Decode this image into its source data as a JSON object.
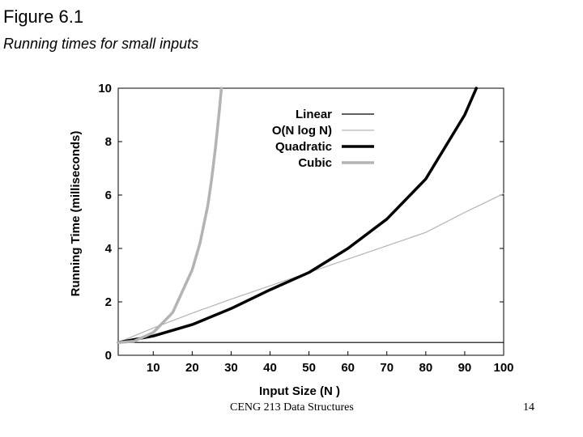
{
  "header": {
    "title": "Figure 6.1",
    "subtitle": "Running times for small inputs"
  },
  "footer": {
    "course": "CENG 213 Data Structures",
    "page": "14"
  },
  "chart_data": {
    "type": "line",
    "title": "",
    "xlabel": "Input Size (N )",
    "ylabel": "Running Time (milliseconds)",
    "xlim": [
      1,
      100
    ],
    "ylim": [
      0,
      10
    ],
    "xticks": [
      10,
      20,
      30,
      40,
      50,
      60,
      70,
      80,
      90,
      100
    ],
    "yticks": [
      0,
      2,
      4,
      6,
      8,
      10
    ],
    "grid": false,
    "legend": "top-right",
    "series": [
      {
        "name": "Linear",
        "color": "#000000",
        "x": [
          1,
          100
        ],
        "y": [
          0.48,
          0.48
        ]
      },
      {
        "name": "O(N log N)",
        "color": "#b3b3b3",
        "x": [
          1,
          10,
          20,
          30,
          40,
          50,
          60,
          70,
          80,
          90,
          100
        ],
        "y": [
          0.48,
          1.02,
          1.58,
          2.1,
          2.6,
          3.1,
          3.6,
          4.1,
          4.6,
          5.35,
          6.05
        ]
      },
      {
        "name": "Quadratic",
        "color": "#000000",
        "x": [
          1,
          10,
          20,
          30,
          40,
          50,
          60,
          70,
          80,
          90,
          93
        ],
        "y": [
          0.48,
          0.72,
          1.15,
          1.75,
          2.45,
          3.1,
          4.0,
          5.1,
          6.6,
          9.0,
          10.0
        ]
      },
      {
        "name": "Cubic",
        "color": "#b3b3b3",
        "x": [
          1,
          5,
          10,
          15,
          20,
          22,
          24,
          25,
          26,
          27,
          27.5
        ],
        "y": [
          0.48,
          0.52,
          0.85,
          1.6,
          3.2,
          4.2,
          5.6,
          6.6,
          7.8,
          9.2,
          10.0
        ]
      }
    ]
  }
}
